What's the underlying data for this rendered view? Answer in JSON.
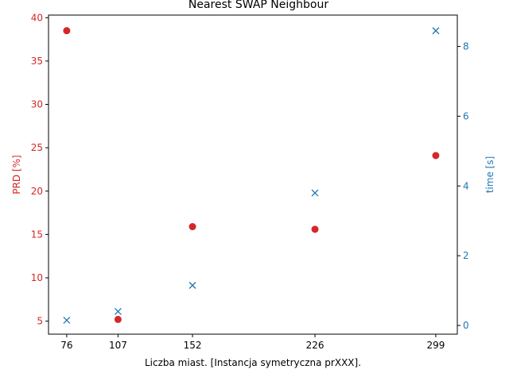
{
  "chart_data": {
    "type": "scatter",
    "title": "Nearest SWAP Neighbour",
    "xlabel": "Liczba miast. [Instancja symetryczna prXXX].",
    "ylabel_left": "PRD [%]",
    "ylabel_right": "time [s]",
    "x": [
      76,
      107,
      152,
      226,
      299
    ],
    "x_tick_labels": [
      "76",
      "107",
      "152",
      "226",
      "299"
    ],
    "xlim": [
      65,
      312
    ],
    "left_axis": {
      "ylim": [
        3.5,
        40.3
      ],
      "ticks": [
        5,
        10,
        15,
        20,
        25,
        30,
        35,
        40
      ],
      "color": "#d62728"
    },
    "right_axis": {
      "ylim": [
        -0.25,
        8.9
      ],
      "ticks": [
        0,
        2,
        4,
        6,
        8
      ],
      "color": "#1f77b4"
    },
    "series": [
      {
        "axis": "left",
        "marker": "circle",
        "color": "#d62728",
        "values": [
          38.5,
          5.2,
          15.9,
          15.6,
          24.1
        ]
      },
      {
        "axis": "right",
        "marker": "x",
        "color": "#1f77b4",
        "values": [
          0.15,
          0.4,
          1.15,
          3.8,
          8.45
        ]
      }
    ],
    "grid": false
  }
}
